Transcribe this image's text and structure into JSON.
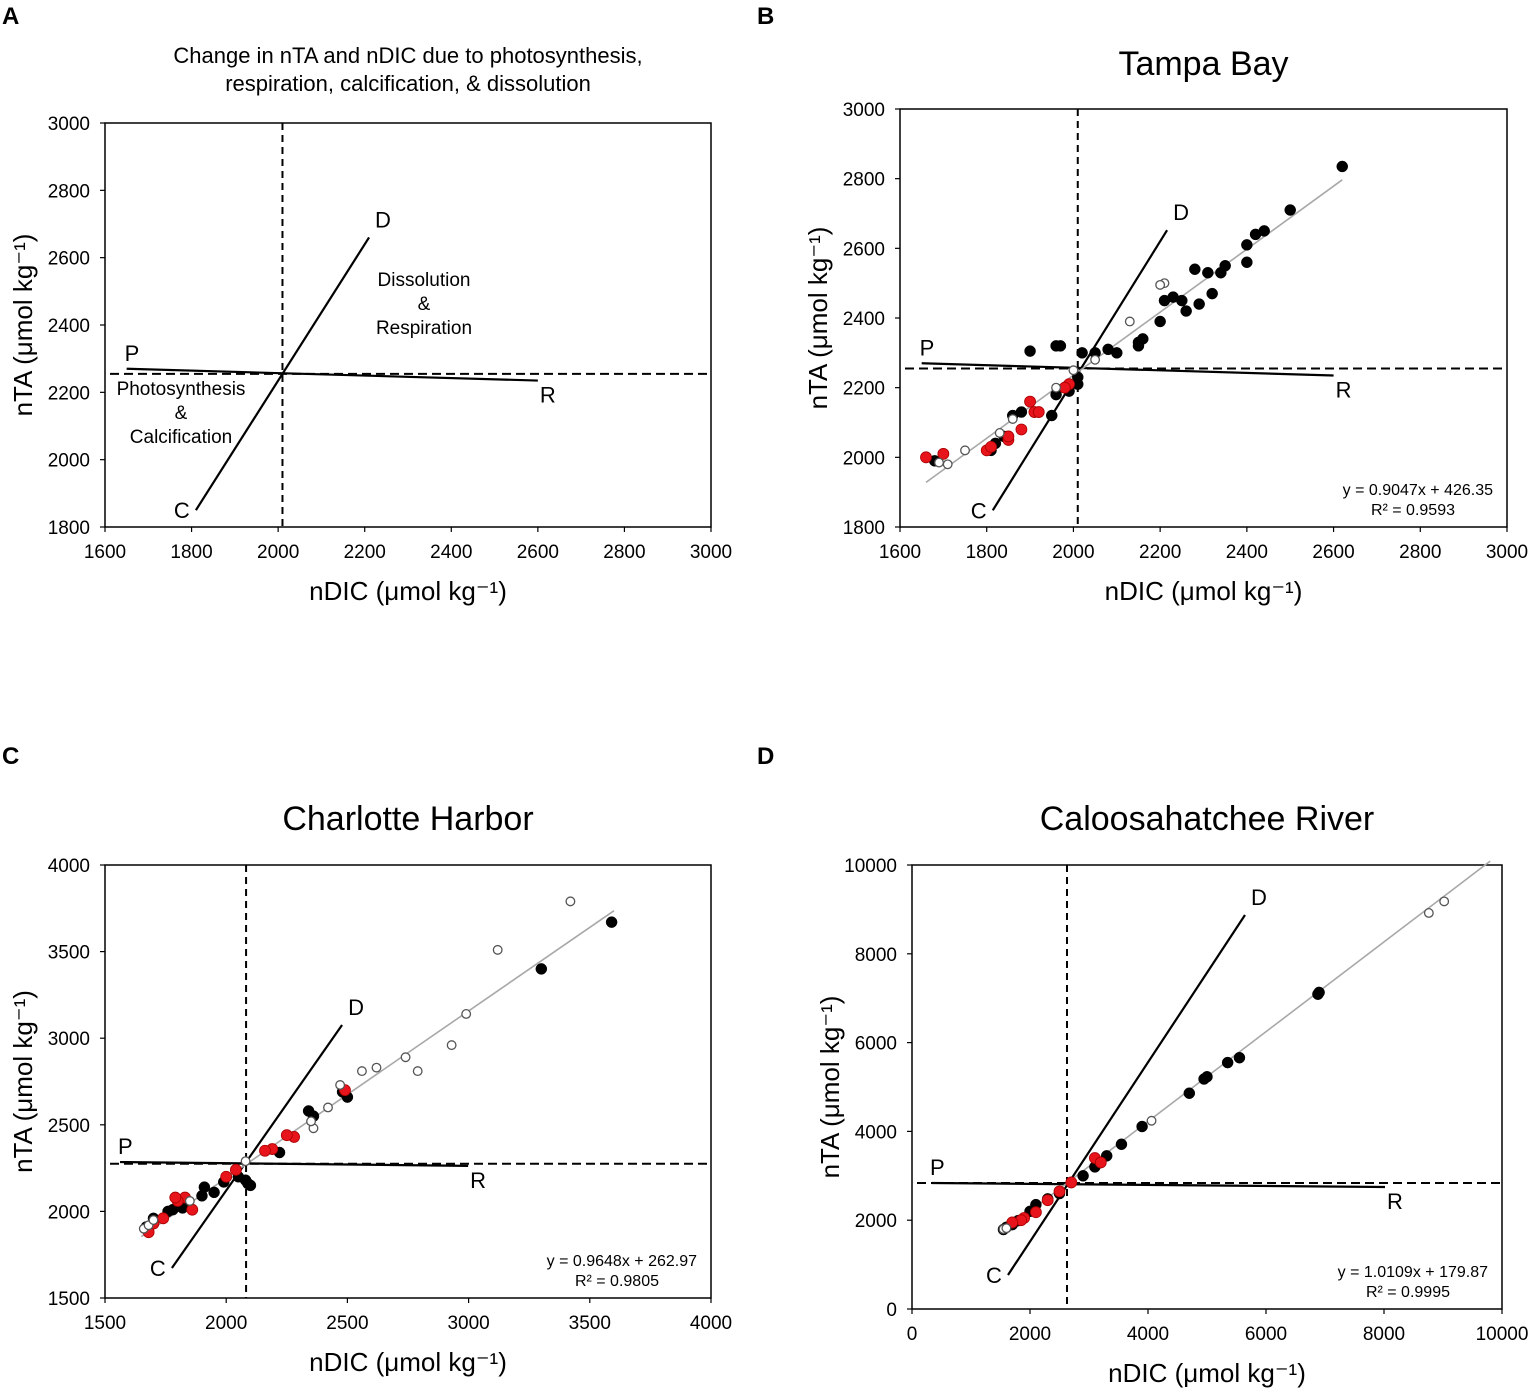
{
  "colors": {
    "filled": "#000000",
    "red": "#e8141b",
    "open_stroke": "#555555",
    "fit": "#a8a8a8",
    "axis": "#000000"
  },
  "chart_data": [
    {
      "panel": "A",
      "type": "scatter",
      "title": [
        "Change  in nTA and nDIC due to photosynthesis,",
        "respiration, calcification, & dissolution"
      ],
      "xlabel": "nDIC (μmol kg⁻¹)",
      "ylabel": "nTA (μmol kg⁻¹)",
      "xlim": [
        1600,
        3000
      ],
      "ylim": [
        1800,
        3000
      ],
      "xticks": [
        1600,
        1800,
        2000,
        2200,
        2400,
        2600,
        2800,
        3000
      ],
      "yticks": [
        1800,
        2000,
        2200,
        2400,
        2600,
        2800,
        3000
      ],
      "vline": 2010,
      "hline": 2255,
      "cd_line": [
        [
          1810,
          1850
        ],
        [
          2210,
          2660
        ]
      ],
      "pr_line": [
        [
          1650,
          2270
        ],
        [
          2600,
          2235
        ]
      ],
      "labels": {
        "P": "P",
        "R": "R",
        "C": "C",
        "D": "D"
      },
      "annotations": [
        [
          "Dissolution",
          "&",
          "Respiration"
        ],
        [
          "Photosynthesis",
          "&",
          "Calcification"
        ]
      ],
      "series": []
    },
    {
      "panel": "B",
      "type": "scatter",
      "title": [
        "Tampa Bay"
      ],
      "xlabel": "nDIC (μmol kg⁻¹)",
      "ylabel": "nTA (μmol kg⁻¹)",
      "xlim": [
        1600,
        3000
      ],
      "ylim": [
        1800,
        3000
      ],
      "xticks": [
        1600,
        1800,
        2000,
        2200,
        2400,
        2600,
        2800,
        3000
      ],
      "yticks": [
        1800,
        2000,
        2200,
        2400,
        2600,
        2800,
        3000
      ],
      "vline": 2010,
      "hline": 2255,
      "cd_line": [
        [
          1814,
          1848
        ],
        [
          2216,
          2652
        ]
      ],
      "pr_line": [
        [
          1650,
          2270
        ],
        [
          2600,
          2235
        ]
      ],
      "labels": {
        "P": "P",
        "R": "R",
        "C": "C",
        "D": "D"
      },
      "fit": {
        "slope": 0.9047,
        "intercept": 426.35,
        "x": [
          1660,
          2620
        ],
        "equation": "y = 0.9047x + 426.35",
        "r2": "R² = 0.9593"
      },
      "series": [
        {
          "name": "filled",
          "points": [
            [
              2620,
              2835
            ],
            [
              2500,
              2710
            ],
            [
              2440,
              2650
            ],
            [
              2420,
              2640
            ],
            [
              2400,
              2610
            ],
            [
              2400,
              2560
            ],
            [
              2350,
              2550
            ],
            [
              2340,
              2530
            ],
            [
              2310,
              2530
            ],
            [
              2280,
              2540
            ],
            [
              2320,
              2470
            ],
            [
              2290,
              2440
            ],
            [
              2260,
              2420
            ],
            [
              2250,
              2450
            ],
            [
              2230,
              2460
            ],
            [
              2210,
              2450
            ],
            [
              2200,
              2390
            ],
            [
              2160,
              2340
            ],
            [
              2150,
              2330
            ],
            [
              2150,
              2320
            ],
            [
              2100,
              2300
            ],
            [
              2080,
              2310
            ],
            [
              2050,
              2300
            ],
            [
              2020,
              2300
            ],
            [
              1960,
              2320
            ],
            [
              1970,
              2320
            ],
            [
              1900,
              2305
            ],
            [
              2010,
              2230
            ],
            [
              2010,
              2210
            ],
            [
              1990,
              2190
            ],
            [
              1960,
              2180
            ],
            [
              1950,
              2120
            ],
            [
              1880,
              2130
            ],
            [
              1860,
              2120
            ],
            [
              1840,
              2060
            ],
            [
              1820,
              2040
            ],
            [
              1810,
              2020
            ],
            [
              1700,
              2010
            ],
            [
              1680,
              1990
            ]
          ]
        },
        {
          "name": "red",
          "points": [
            [
              1660,
              2000
            ],
            [
              1700,
              2010
            ],
            [
              1800,
              2020
            ],
            [
              1810,
              2030
            ],
            [
              1850,
              2050
            ],
            [
              1850,
              2060
            ],
            [
              1880,
              2080
            ],
            [
              1900,
              2160
            ],
            [
              1910,
              2130
            ],
            [
              1920,
              2130
            ],
            [
              1990,
              2210
            ],
            [
              1980,
              2200
            ]
          ]
        },
        {
          "name": "open",
          "points": [
            [
              1690,
              1985
            ],
            [
              1710,
              1980
            ],
            [
              1750,
              2020
            ],
            [
              1830,
              2070
            ],
            [
              1860,
              2110
            ],
            [
              1960,
              2200
            ],
            [
              2000,
              2250
            ],
            [
              2050,
              2280
            ],
            [
              2130,
              2390
            ],
            [
              2210,
              2500
            ],
            [
              2200,
              2495
            ]
          ]
        }
      ]
    },
    {
      "panel": "C",
      "type": "scatter",
      "title": [
        "Charlotte Harbor"
      ],
      "xlabel": "nDIC (μmol kg⁻¹)",
      "ylabel": "nTA (μmol kg⁻¹)",
      "xlim": [
        1500,
        4000
      ],
      "ylim": [
        1500,
        4000
      ],
      "xticks": [
        1500,
        2000,
        2500,
        3000,
        3500,
        4000
      ],
      "yticks": [
        1500,
        2000,
        2500,
        3000,
        3500,
        4000
      ],
      "vline": 2082,
      "hline": 2275,
      "cd_line": [
        [
          1776,
          1673
        ],
        [
          2478,
          3076
        ]
      ],
      "pr_line": [
        [
          1562,
          2285
        ],
        [
          2998,
          2263
        ]
      ],
      "labels": {
        "P": "P",
        "R": "R",
        "C": "C",
        "D": "D"
      },
      "fit": {
        "slope": 0.9648,
        "intercept": 262.97,
        "x": [
          1650,
          3600
        ],
        "equation": "y = 0.9648x + 262.97",
        "r2": "R² = 0.9805"
      },
      "series": [
        {
          "name": "filled",
          "points": [
            [
              3590,
              3670
            ],
            [
              3300,
              3400
            ],
            [
              2500,
              2660
            ],
            [
              2480,
              2690
            ],
            [
              2340,
              2580
            ],
            [
              2360,
              2550
            ],
            [
              2220,
              2340
            ],
            [
              2090,
              2160
            ],
            [
              2080,
              2180
            ],
            [
              2100,
              2150
            ],
            [
              2050,
              2200
            ],
            [
              1990,
              2170
            ],
            [
              1950,
              2110
            ],
            [
              1910,
              2140
            ],
            [
              1900,
              2090
            ],
            [
              1820,
              2020
            ],
            [
              1780,
              2010
            ],
            [
              1760,
              2000
            ],
            [
              1700,
              1960
            ],
            [
              1670,
              1910
            ]
          ]
        },
        {
          "name": "red",
          "points": [
            [
              2490,
              2700
            ],
            [
              2280,
              2430
            ],
            [
              2250,
              2440
            ],
            [
              2190,
              2360
            ],
            [
              2160,
              2350
            ],
            [
              2040,
              2240
            ],
            [
              2000,
              2200
            ],
            [
              1860,
              2010
            ],
            [
              1830,
              2080
            ],
            [
              1800,
              2060
            ],
            [
              1790,
              2080
            ],
            [
              1740,
              1960
            ],
            [
              1700,
              1930
            ],
            [
              1680,
              1880
            ]
          ]
        },
        {
          "name": "open",
          "points": [
            [
              3420,
              3790
            ],
            [
              3120,
              3510
            ],
            [
              2990,
              3140
            ],
            [
              2930,
              2960
            ],
            [
              2790,
              2810
            ],
            [
              2740,
              2890
            ],
            [
              2620,
              2830
            ],
            [
              2560,
              2810
            ],
            [
              2470,
              2730
            ],
            [
              2420,
              2600
            ],
            [
              2360,
              2480
            ],
            [
              2350,
              2520
            ],
            [
              2080,
              2290
            ],
            [
              1660,
              1900
            ],
            [
              1680,
              1920
            ],
            [
              1700,
              1950
            ],
            [
              1850,
              2060
            ]
          ]
        }
      ]
    },
    {
      "panel": "D",
      "type": "scatter",
      "title": [
        "Caloosahatchee River"
      ],
      "xlabel": "nDIC (μmol kg⁻¹)",
      "ylabel": "nTA (μmol kg⁻¹)",
      "xlim": [
        0,
        10000
      ],
      "ylim": [
        0,
        10000
      ],
      "xticks": [
        0,
        2000,
        4000,
        6000,
        8000,
        10000
      ],
      "yticks": [
        0,
        2000,
        4000,
        6000,
        8000,
        10000
      ],
      "vline": 2627,
      "hline": 2838,
      "cd_line": [
        [
          1627,
          766
        ],
        [
          5644,
          8874
        ]
      ],
      "pr_line": [
        [
          339,
          2838
        ],
        [
          8017,
          2748
        ]
      ],
      "labels": {
        "P": "P",
        "R": "R",
        "C": "C",
        "D": "D"
      },
      "fit": {
        "slope": 1.0109,
        "intercept": 179.87,
        "x": [
          1500,
          9800
        ],
        "equation": "y = 1.0109x + 179.87",
        "r2": "R² = 0.9995"
      },
      "series": [
        {
          "name": "filled",
          "points": [
            [
              6880,
              7090
            ],
            [
              6900,
              7130
            ],
            [
              5550,
              5660
            ],
            [
              5350,
              5550
            ],
            [
              5000,
              5230
            ],
            [
              4950,
              5180
            ],
            [
              4700,
              4860
            ],
            [
              3900,
              4110
            ],
            [
              3550,
              3710
            ],
            [
              3300,
              3450
            ],
            [
              3100,
              3200
            ],
            [
              2900,
              3000
            ],
            [
              2500,
              2600
            ],
            [
              2300,
              2480
            ],
            [
              2100,
              2350
            ],
            [
              2000,
              2200
            ],
            [
              1800,
              1990
            ],
            [
              1700,
              1900
            ],
            [
              1600,
              1840
            ],
            [
              1550,
              1790
            ]
          ]
        },
        {
          "name": "red",
          "points": [
            [
              3100,
              3400
            ],
            [
              3200,
              3300
            ],
            [
              2700,
              2850
            ],
            [
              2500,
              2650
            ],
            [
              2300,
              2450
            ],
            [
              2100,
              2180
            ],
            [
              1900,
              2050
            ],
            [
              1850,
              2000
            ],
            [
              1700,
              1950
            ]
          ]
        },
        {
          "name": "open",
          "points": [
            [
              9020,
              9180
            ],
            [
              8760,
              8920
            ],
            [
              4060,
              4240
            ],
            [
              1550,
              1800
            ],
            [
              1600,
              1820
            ]
          ]
        }
      ]
    }
  ]
}
